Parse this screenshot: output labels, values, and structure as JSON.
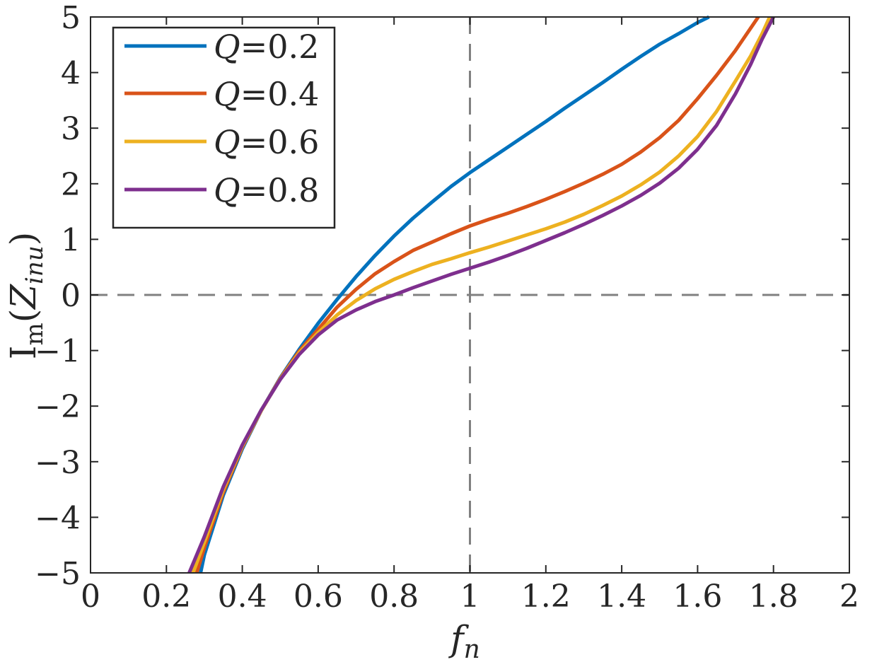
{
  "chart_data": {
    "type": "line",
    "xlabel": {
      "main": "f",
      "sub": "n"
    },
    "ylabel": {
      "main": "I",
      "sub1": "m",
      "paren_open": "(",
      "var": "Z",
      "sub2": "inu",
      "paren_close": ")"
    },
    "xlim": [
      0,
      2
    ],
    "ylim": [
      -5,
      5
    ],
    "x_ticks": [
      0,
      0.2,
      0.4,
      0.6,
      0.8,
      1,
      1.2,
      1.4,
      1.6,
      1.8,
      2
    ],
    "x_tick_labels": [
      "0",
      "0.2",
      "0.4",
      "0.6",
      "0.8",
      "1",
      "1.2",
      "1.4",
      "1.6",
      "1.8",
      "2"
    ],
    "y_ticks": [
      -5,
      -4,
      -3,
      -2,
      -1,
      0,
      1,
      2,
      3,
      4,
      5
    ],
    "y_tick_labels": [
      "−5",
      "−4",
      "−3",
      "−2",
      "−1",
      "0",
      "1",
      "2",
      "3",
      "4",
      "5"
    ],
    "reference_lines": {
      "vertical_x": 1,
      "horizontal_y": 0,
      "style": "dashed",
      "color": "#808080"
    },
    "grid": false,
    "legend_position": "top-left",
    "series": [
      {
        "name": "Q=0.2",
        "name_var": "Q",
        "name_value": "=0.2",
        "color": "#0072BD",
        "x": [
          0.29,
          0.3,
          0.35,
          0.4,
          0.45,
          0.5,
          0.55,
          0.6,
          0.65,
          0.7,
          0.75,
          0.8,
          0.85,
          0.9,
          0.95,
          1.0,
          1.05,
          1.1,
          1.15,
          1.2,
          1.25,
          1.3,
          1.35,
          1.4,
          1.45,
          1.5,
          1.55,
          1.6,
          1.63
        ],
        "y": [
          -5.0,
          -4.68,
          -3.6,
          -2.77,
          -2.08,
          -1.49,
          -0.98,
          -0.51,
          -0.08,
          0.33,
          0.71,
          1.06,
          1.38,
          1.67,
          1.95,
          2.2,
          2.43,
          2.66,
          2.89,
          3.12,
          3.36,
          3.59,
          3.82,
          4.06,
          4.29,
          4.51,
          4.7,
          4.9,
          5.0
        ]
      },
      {
        "name": "Q=0.4",
        "name_var": "Q",
        "name_value": "=0.4",
        "color": "#D95319",
        "x": [
          0.28,
          0.3,
          0.35,
          0.4,
          0.45,
          0.5,
          0.55,
          0.6,
          0.65,
          0.7,
          0.75,
          0.8,
          0.85,
          0.9,
          0.95,
          1.0,
          1.05,
          1.1,
          1.15,
          1.2,
          1.25,
          1.3,
          1.35,
          1.4,
          1.45,
          1.5,
          1.55,
          1.6,
          1.65,
          1.7,
          1.72,
          1.74,
          1.76
        ],
        "y": [
          -5.0,
          -4.55,
          -3.55,
          -2.74,
          -2.08,
          -1.5,
          -1.01,
          -0.62,
          -0.22,
          0.1,
          0.38,
          0.6,
          0.8,
          0.95,
          1.1,
          1.24,
          1.36,
          1.47,
          1.59,
          1.72,
          1.86,
          2.01,
          2.17,
          2.35,
          2.57,
          2.83,
          3.14,
          3.53,
          3.95,
          4.4,
          4.6,
          4.8,
          5.0
        ]
      },
      {
        "name": "Q=0.6",
        "name_var": "Q",
        "name_value": "=0.6",
        "color": "#EDB120",
        "x": [
          0.27,
          0.3,
          0.35,
          0.4,
          0.45,
          0.5,
          0.55,
          0.6,
          0.65,
          0.7,
          0.75,
          0.8,
          0.85,
          0.9,
          0.95,
          1.0,
          1.05,
          1.1,
          1.15,
          1.2,
          1.25,
          1.3,
          1.35,
          1.4,
          1.45,
          1.5,
          1.55,
          1.6,
          1.65,
          1.7,
          1.74,
          1.77,
          1.79
        ],
        "y": [
          -5.0,
          -4.45,
          -3.5,
          -2.72,
          -2.08,
          -1.51,
          -1.04,
          -0.68,
          -0.36,
          -0.1,
          0.11,
          0.28,
          0.42,
          0.55,
          0.65,
          0.76,
          0.86,
          0.97,
          1.08,
          1.19,
          1.31,
          1.45,
          1.61,
          1.78,
          1.98,
          2.21,
          2.5,
          2.85,
          3.3,
          3.85,
          4.3,
          4.7,
          5.0
        ]
      },
      {
        "name": "Q=0.8",
        "name_var": "Q",
        "name_value": "=0.8",
        "color": "#7E2F8E",
        "x": [
          0.26,
          0.3,
          0.35,
          0.4,
          0.45,
          0.5,
          0.55,
          0.6,
          0.65,
          0.7,
          0.75,
          0.8,
          0.85,
          0.9,
          0.95,
          1.0,
          1.05,
          1.1,
          1.15,
          1.2,
          1.25,
          1.3,
          1.35,
          1.4,
          1.45,
          1.5,
          1.55,
          1.6,
          1.65,
          1.7,
          1.74,
          1.77,
          1.8
        ],
        "y": [
          -5.0,
          -4.35,
          -3.45,
          -2.7,
          -2.07,
          -1.52,
          -1.07,
          -0.72,
          -0.45,
          -0.27,
          -0.12,
          0.0,
          0.13,
          0.25,
          0.37,
          0.48,
          0.59,
          0.71,
          0.84,
          0.98,
          1.12,
          1.27,
          1.43,
          1.6,
          1.79,
          2.01,
          2.28,
          2.62,
          3.05,
          3.62,
          4.15,
          4.6,
          5.0
        ]
      }
    ]
  }
}
